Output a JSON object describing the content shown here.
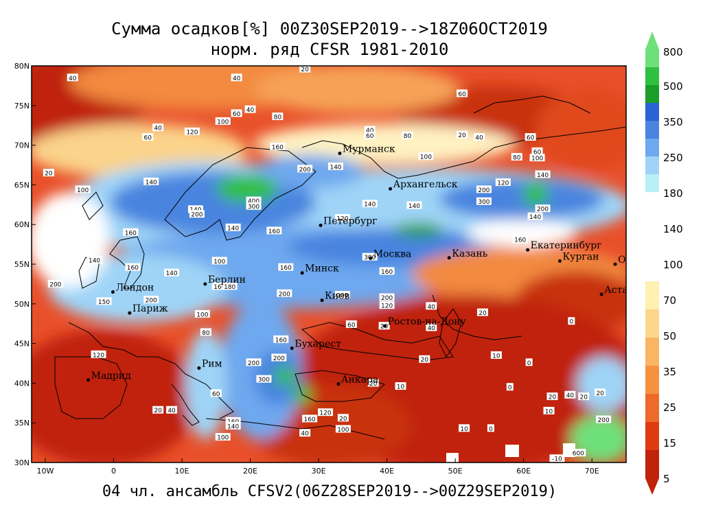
{
  "title_line1": "Сумма осадков[%] 00Z30SEP2019-->18Z06OCT2019",
  "title_line2": "норм. ряд CFSR 1981-2010",
  "subtitle": "04 чл. ансамбль CFSV2(06Z28SEP2019-->00Z29SEP2019)",
  "map": {
    "lon_range": [
      -12,
      75
    ],
    "lat_range": [
      30,
      80
    ],
    "lat_ticks": [
      {
        "lat": 80,
        "label": "80N"
      },
      {
        "lat": 75,
        "label": "75N"
      },
      {
        "lat": 70,
        "label": "70N"
      },
      {
        "lat": 65,
        "label": "65N"
      },
      {
        "lat": 60,
        "label": "60N"
      },
      {
        "lat": 55,
        "label": "55N"
      },
      {
        "lat": 50,
        "label": "50N"
      },
      {
        "lat": 45,
        "label": "45N"
      },
      {
        "lat": 40,
        "label": "40N"
      },
      {
        "lat": 35,
        "label": "35N"
      },
      {
        "lat": 30,
        "label": "30N"
      }
    ],
    "lon_ticks": [
      {
        "lon": -10,
        "label": "10W"
      },
      {
        "lon": 0,
        "label": "0"
      },
      {
        "lon": 10,
        "label": "10E"
      },
      {
        "lon": 20,
        "label": "20E"
      },
      {
        "lon": 30,
        "label": "30E"
      },
      {
        "lon": 40,
        "label": "40E"
      },
      {
        "lon": 50,
        "label": "50E"
      },
      {
        "lon": 60,
        "label": "60E"
      },
      {
        "lon": 70,
        "label": "70E"
      }
    ],
    "cities": [
      {
        "name": "Мурманск",
        "lon": 33.1,
        "lat": 68.97
      },
      {
        "name": "Архангельск",
        "lon": 40.5,
        "lat": 64.5
      },
      {
        "name": "Петербург",
        "lon": 30.3,
        "lat": 59.9
      },
      {
        "name": "Москва",
        "lon": 37.6,
        "lat": 55.75
      },
      {
        "name": "Казань",
        "lon": 49.1,
        "lat": 55.8
      },
      {
        "name": "Екатеринбург",
        "lon": 60.6,
        "lat": 56.8
      },
      {
        "name": "Курган",
        "lon": 65.3,
        "lat": 55.4
      },
      {
        "name": "Омск",
        "lon": 73.4,
        "lat": 55.0
      },
      {
        "name": "Астана",
        "lon": 71.4,
        "lat": 51.2
      },
      {
        "name": "Минск",
        "lon": 27.6,
        "lat": 53.9
      },
      {
        "name": "Берлин",
        "lon": 13.4,
        "lat": 52.5
      },
      {
        "name": "Лондон",
        "lon": -0.1,
        "lat": 51.5
      },
      {
        "name": "Париж",
        "lon": 2.35,
        "lat": 48.85
      },
      {
        "name": "Киев",
        "lon": 30.5,
        "lat": 50.45
      },
      {
        "name": "Ростов-на-Дону",
        "lon": 39.7,
        "lat": 47.2
      },
      {
        "name": "Бухарест",
        "lon": 26.1,
        "lat": 44.4
      },
      {
        "name": "Рим",
        "lon": 12.5,
        "lat": 41.9
      },
      {
        "name": "Мадрид",
        "lon": -3.7,
        "lat": 40.4
      },
      {
        "name": "Анкара",
        "lon": 32.9,
        "lat": 39.9
      }
    ],
    "contour_labels": [
      {
        "text": "20",
        "lon": 28,
        "lat": 79.6
      },
      {
        "text": "40",
        "lon": -6,
        "lat": 78.5
      },
      {
        "text": "40",
        "lon": 18,
        "lat": 78.5
      },
      {
        "text": "60",
        "lon": 51,
        "lat": 76.5
      },
      {
        "text": "40",
        "lon": 20,
        "lat": 74.5
      },
      {
        "text": "60",
        "lon": 18,
        "lat": 74
      },
      {
        "text": "80",
        "lon": 24,
        "lat": 73.6
      },
      {
        "text": "100",
        "lon": 16,
        "lat": 73
      },
      {
        "text": "40",
        "lon": 6.5,
        "lat": 72.2
      },
      {
        "text": "60",
        "lon": 5,
        "lat": 71
      },
      {
        "text": "120",
        "lon": 11.5,
        "lat": 71.7
      },
      {
        "text": "40",
        "lon": 37.5,
        "lat": 71.9
      },
      {
        "text": "60",
        "lon": 37.5,
        "lat": 71.2
      },
      {
        "text": "80",
        "lon": 43,
        "lat": 71.2
      },
      {
        "text": "20",
        "lon": 51,
        "lat": 71.3
      },
      {
        "text": "40",
        "lon": 53.5,
        "lat": 71
      },
      {
        "text": "60",
        "lon": 61,
        "lat": 71
      },
      {
        "text": "160",
        "lon": 24,
        "lat": 69.8
      },
      {
        "text": "100",
        "lon": 45.7,
        "lat": 68.6
      },
      {
        "text": "80",
        "lon": 59,
        "lat": 68.5
      },
      {
        "text": "100",
        "lon": 62,
        "lat": 68.4
      },
      {
        "text": "60",
        "lon": 62,
        "lat": 69.2
      },
      {
        "text": "20",
        "lon": -9.5,
        "lat": 66.5
      },
      {
        "text": "140",
        "lon": 32.5,
        "lat": 67.3
      },
      {
        "text": "200",
        "lon": 28,
        "lat": 67
      },
      {
        "text": "140",
        "lon": 5.5,
        "lat": 65.4
      },
      {
        "text": "100",
        "lon": -4.5,
        "lat": 64.4
      },
      {
        "text": "140",
        "lon": 12,
        "lat": 61.9
      },
      {
        "text": "200",
        "lon": 12.2,
        "lat": 61.3
      },
      {
        "text": "400",
        "lon": 20.5,
        "lat": 63
      },
      {
        "text": "300",
        "lon": 20.5,
        "lat": 62.3
      },
      {
        "text": "140",
        "lon": 37.5,
        "lat": 62.6
      },
      {
        "text": "140",
        "lon": 44,
        "lat": 62.4
      },
      {
        "text": "300",
        "lon": 54.2,
        "lat": 62.9
      },
      {
        "text": "200",
        "lon": 54.2,
        "lat": 64.4
      },
      {
        "text": "120",
        "lon": 57,
        "lat": 65.3
      },
      {
        "text": "140",
        "lon": 62.8,
        "lat": 66.3
      },
      {
        "text": "200",
        "lon": 62.8,
        "lat": 62
      },
      {
        "text": "140",
        "lon": 61.7,
        "lat": 61
      },
      {
        "text": "120",
        "lon": 33.5,
        "lat": 60.8
      },
      {
        "text": "140",
        "lon": 17.5,
        "lat": 59.6
      },
      {
        "text": "160",
        "lon": 23.5,
        "lat": 59.2
      },
      {
        "text": "160",
        "lon": 2.5,
        "lat": 59
      },
      {
        "text": "160",
        "lon": 59.5,
        "lat": 58.1
      },
      {
        "text": "140",
        "lon": -2.8,
        "lat": 55.5
      },
      {
        "text": "100",
        "lon": 15.5,
        "lat": 55.4
      },
      {
        "text": "300",
        "lon": 37.5,
        "lat": 55.9
      },
      {
        "text": "160",
        "lon": 25.2,
        "lat": 54.6
      },
      {
        "text": "160",
        "lon": 40,
        "lat": 54.1
      },
      {
        "text": "160",
        "lon": 2.8,
        "lat": 54.6
      },
      {
        "text": "140",
        "lon": 8.5,
        "lat": 53.9
      },
      {
        "text": "200",
        "lon": -8.5,
        "lat": 52.5
      },
      {
        "text": "160",
        "lon": 15.5,
        "lat": 52.2
      },
      {
        "text": "180",
        "lon": 17,
        "lat": 52.2
      },
      {
        "text": "200",
        "lon": 25,
        "lat": 51.3
      },
      {
        "text": "200",
        "lon": 33.5,
        "lat": 51.1
      },
      {
        "text": "200",
        "lon": 40,
        "lat": 50.8
      },
      {
        "text": "150",
        "lon": -1.4,
        "lat": 50.3
      },
      {
        "text": "200",
        "lon": 5.5,
        "lat": 50.5
      },
      {
        "text": "120",
        "lon": 40,
        "lat": 49.8
      },
      {
        "text": "40",
        "lon": 46.5,
        "lat": 49.7
      },
      {
        "text": "20",
        "lon": 54,
        "lat": 48.9
      },
      {
        "text": "0",
        "lon": 67,
        "lat": 47.8
      },
      {
        "text": "100",
        "lon": 13,
        "lat": 48.7
      },
      {
        "text": "60",
        "lon": 34.8,
        "lat": 47.4
      },
      {
        "text": "20",
        "lon": 39.6,
        "lat": 47.2
      },
      {
        "text": "40",
        "lon": 46.5,
        "lat": 47
      },
      {
        "text": "160",
        "lon": 24.5,
        "lat": 45.5
      },
      {
        "text": "80",
        "lon": 13.5,
        "lat": 46.4
      },
      {
        "text": "120",
        "lon": -2.2,
        "lat": 43.6
      },
      {
        "text": "10",
        "lon": 56,
        "lat": 43.5
      },
      {
        "text": "0",
        "lon": 60.8,
        "lat": 42.6
      },
      {
        "text": "200",
        "lon": 24.2,
        "lat": 43.2
      },
      {
        "text": "200",
        "lon": 20.5,
        "lat": 42.6
      },
      {
        "text": "20",
        "lon": 45.5,
        "lat": 43
      },
      {
        "text": "300",
        "lon": 22,
        "lat": 40.5
      },
      {
        "text": "20",
        "lon": 38,
        "lat": 40
      },
      {
        "text": "10",
        "lon": 42,
        "lat": 39.6
      },
      {
        "text": "0",
        "lon": 58,
        "lat": 39.5
      },
      {
        "text": "60",
        "lon": 15,
        "lat": 38.7
      },
      {
        "text": "20",
        "lon": 6.5,
        "lat": 36.6
      },
      {
        "text": "40",
        "lon": 8.5,
        "lat": 36.6
      },
      {
        "text": "160",
        "lon": 17.5,
        "lat": 35.2
      },
      {
        "text": "140",
        "lon": 17.5,
        "lat": 34.6
      },
      {
        "text": "160",
        "lon": 28.7,
        "lat": 35.5
      },
      {
        "text": "120",
        "lon": 31,
        "lat": 36.3
      },
      {
        "text": "20",
        "lon": 33.6,
        "lat": 35.6
      },
      {
        "text": "100",
        "lon": 33.6,
        "lat": 34.2
      },
      {
        "text": "40",
        "lon": 28,
        "lat": 33.7
      },
      {
        "text": "10",
        "lon": 51.3,
        "lat": 34.3
      },
      {
        "text": "0",
        "lon": 55.2,
        "lat": 34.3
      },
      {
        "text": "100",
        "lon": 16,
        "lat": 33.2
      },
      {
        "text": "10",
        "lon": 63.7,
        "lat": 36.5
      },
      {
        "text": "20",
        "lon": 64.2,
        "lat": 38.3
      },
      {
        "text": "40",
        "lon": 66.8,
        "lat": 38.5
      },
      {
        "text": "20",
        "lon": 68.8,
        "lat": 38.3
      },
      {
        "text": "20",
        "lon": 71.2,
        "lat": 38.8
      },
      {
        "text": "-10",
        "lon": 64.9,
        "lat": 30.5
      },
      {
        "text": "200",
        "lon": 71.7,
        "lat": 35.4
      },
      {
        "text": "600",
        "lon": 68,
        "lat": 31.2
      }
    ]
  },
  "colorbar": {
    "colors": [
      "#c0230a",
      "#e03a12",
      "#ee6a2a",
      "#f5913f",
      "#f9b562",
      "#fcd68b",
      "#fff0b0",
      "#ffffff",
      "#b8f0f5",
      "#9fd4f7",
      "#6ea8ee",
      "#4a84df",
      "#2a63d4",
      "#1a9e28",
      "#30c040",
      "#6ee07a"
    ],
    "labels": [
      "800",
      "500",
      "350",
      "250",
      "180",
      "140",
      "100",
      "70",
      "50",
      "35",
      "25",
      "15",
      "5"
    ]
  }
}
